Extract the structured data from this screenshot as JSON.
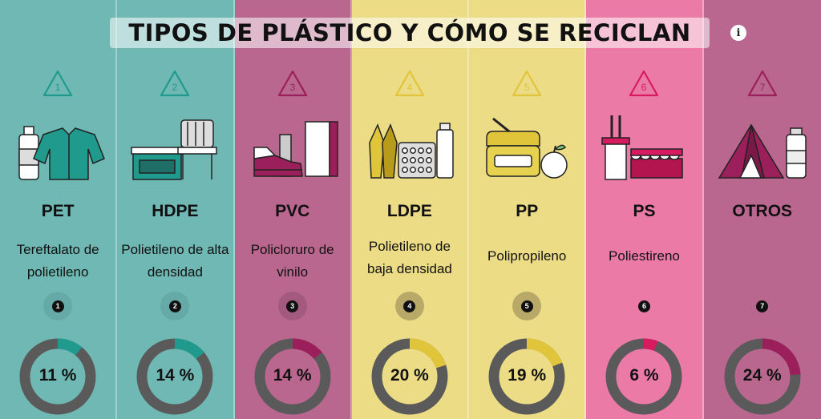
{
  "header": {
    "title": "TIPOS DE PLÁSTICO Y CÓMO SE RECICLAN",
    "info_icon": "info-icon"
  },
  "plastics": [
    {
      "number": "1",
      "code": "PET",
      "name": "Tereftalato de polietileno",
      "percent_label": "11 %",
      "percent": 11,
      "bg": "#6fb8b4",
      "accent": "#1f9a8c",
      "dark": "#1f6f68",
      "dot_bg": "#65aaa6",
      "illustration": "bottle-and-jacket-icon"
    },
    {
      "number": "2",
      "code": "HDPE",
      "name": "Polietileno de alta densidad",
      "percent_label": "14 %",
      "percent": 14,
      "bg": "#6fb8b4",
      "accent": "#1f9a8c",
      "dark": "#1f6f68",
      "dot_bg": "#65aaa6",
      "illustration": "crate-and-chair-icon"
    },
    {
      "number": "3",
      "code": "PVC",
      "name": "Policloruro de vinilo",
      "percent_label": "14 %",
      "percent": 14,
      "bg": "#b9678f",
      "accent": "#9a1f5a",
      "dark": "#7a1847",
      "dot_bg": "#a35a7e",
      "illustration": "shoe-and-pipes-icon"
    },
    {
      "number": "4",
      "code": "LDPE",
      "name": "Polietileno de baja densidad",
      "percent_label": "20 %",
      "percent": 20,
      "bg": "#ecdc86",
      "accent": "#e0c43a",
      "dark": "#b89b1a",
      "dot_bg": "#b8a968",
      "illustration": "bags-and-blister-icon"
    },
    {
      "number": "5",
      "code": "PP",
      "name": "Polipropileno",
      "percent_label": "19 %",
      "percent": 19,
      "bg": "#ecdc86",
      "accent": "#e0c43a",
      "dark": "#b89b1a",
      "dot_bg": "#b8a968",
      "illustration": "lunchbox-and-apple-icon"
    },
    {
      "number": "6",
      "code": "PS",
      "name": "Poliestireno",
      "percent_label": "6 %",
      "percent": 6,
      "bg": "#ec7aa7",
      "accent": "#d81b60",
      "dark": "#b3164f",
      "dot_bg": "#ec7aa7",
      "illustration": "cutlery-and-egg-carton-icon"
    },
    {
      "number": "7",
      "code": "OTROS",
      "name": "",
      "percent_label": "24 %",
      "percent": 24,
      "bg": "#b9678f",
      "accent": "#9a1f5a",
      "dark": "#7a1847",
      "dot_bg": "#b9678f",
      "illustration": "tent-and-bottle-icon"
    }
  ]
}
